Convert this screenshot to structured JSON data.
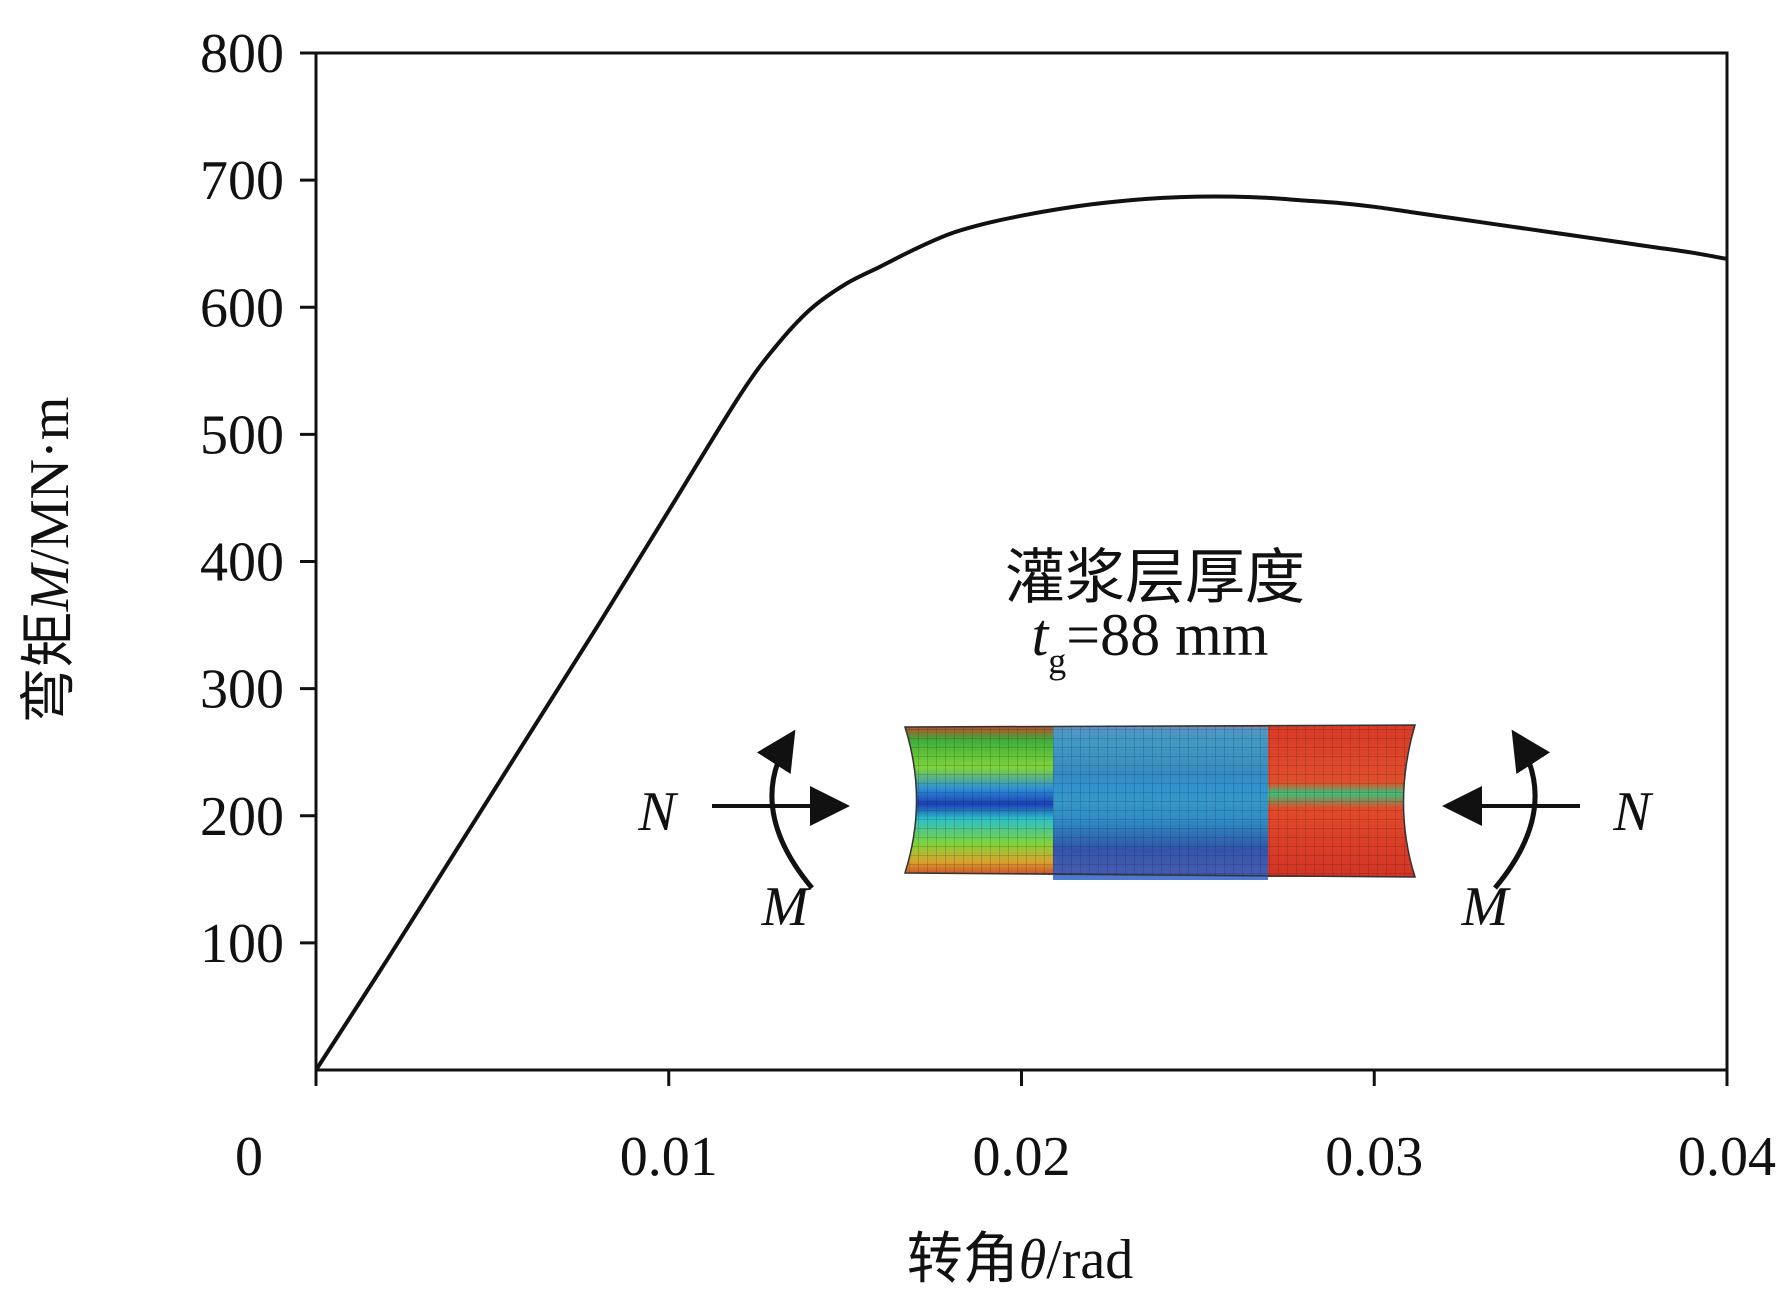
{
  "chart_data": {
    "type": "line",
    "xlabel_prefix": "转角",
    "xlabel_symbol": "θ",
    "xlabel_unit": "/rad",
    "ylabel_prefix": "弯矩",
    "ylabel_symbol": "M",
    "ylabel_unit": "/MN·m",
    "xlim": [
      0,
      0.04
    ],
    "ylim": [
      0,
      800
    ],
    "x_ticks": [
      0,
      0.01,
      0.02,
      0.03,
      0.04
    ],
    "x_tick_labels": [
      "0",
      "0.01",
      "0.02",
      "0.03",
      "0.04"
    ],
    "y_ticks": [
      100,
      200,
      300,
      400,
      500,
      600,
      700,
      800
    ],
    "y_tick_labels": [
      "100",
      "200",
      "300",
      "400",
      "500",
      "600",
      "700",
      "800"
    ],
    "grid": false,
    "series": [
      {
        "x": [
          0,
          0.002,
          0.004,
          0.006,
          0.008,
          0.01,
          0.012,
          0.013,
          0.014,
          0.015,
          0.016,
          0.017,
          0.018,
          0.019,
          0.02,
          0.021,
          0.022,
          0.023,
          0.024,
          0.025,
          0.026,
          0.027,
          0.028,
          0.029,
          0.03,
          0.031,
          0.032,
          0.033,
          0.034,
          0.035,
          0.036,
          0.037,
          0.038,
          0.039,
          0.04
        ],
        "y": [
          0,
          86,
          174,
          262,
          350,
          440,
          530,
          568,
          598,
          618,
          632,
          646,
          658,
          666,
          672,
          677,
          681,
          684,
          686,
          687,
          687,
          686,
          684,
          682,
          679,
          675,
          671,
          667,
          663,
          659,
          655,
          651,
          647,
          643,
          638
        ],
        "color": "#111111"
      }
    ],
    "annotation": {
      "title": "灌浆层厚度",
      "thickness_symbol": "t",
      "thickness_subscript": "g",
      "thickness_value": "=88 mm",
      "force_label": "N",
      "moment_label": "M"
    }
  }
}
